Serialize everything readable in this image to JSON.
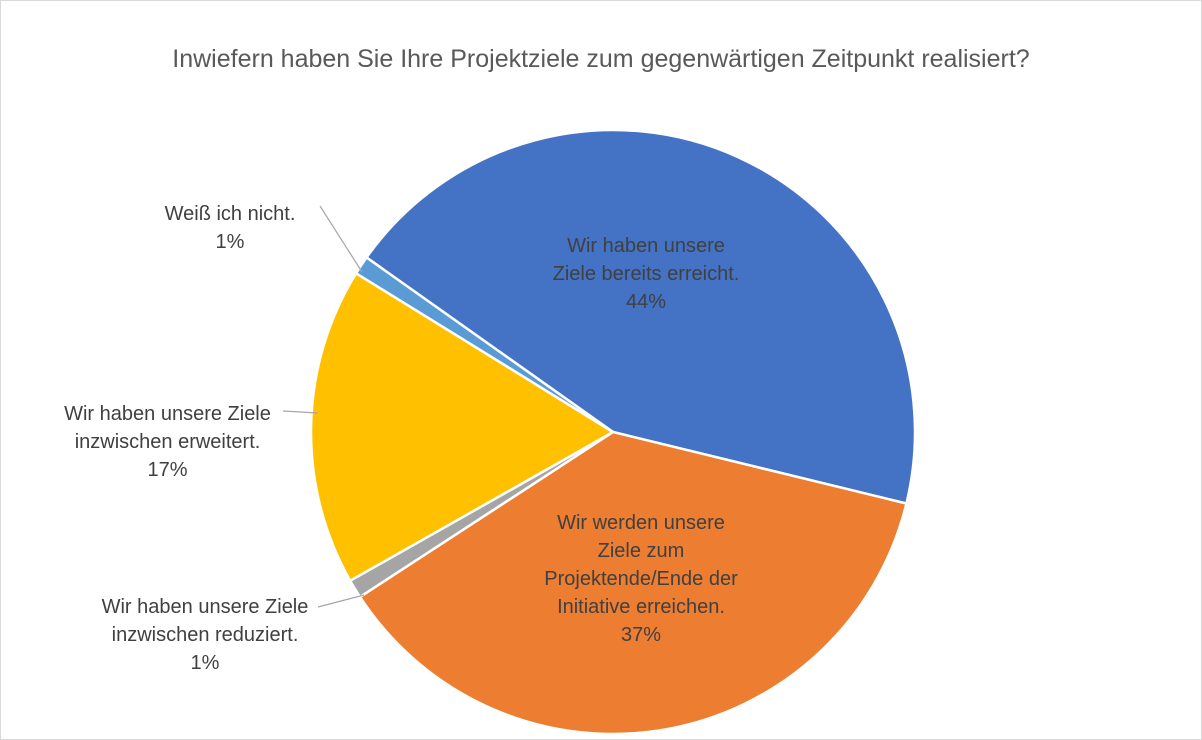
{
  "chart_data": {
    "type": "pie",
    "title": "Inwiefern haben Sie Ihre Projektziele zum gegenwärtigen Zeitpunkt realisiert?",
    "categories": [
      "Wir haben unsere Ziele bereits erreicht.",
      "Wir werden unsere Ziele zum Projektende/Ende der Initiative erreichen.",
      "Wir haben unsere Ziele inzwischen reduziert.",
      "Wir haben unsere Ziele inzwischen erweitert.",
      "Weiß ich nicht."
    ],
    "values": [
      44,
      37,
      1,
      17,
      1
    ],
    "value_labels": [
      "44%",
      "37%",
      "1%",
      "17%",
      "1%"
    ],
    "colors": [
      "#4472c4",
      "#ed7d31",
      "#a5a5a5",
      "#ffc000",
      "#5b9bd5"
    ]
  }
}
